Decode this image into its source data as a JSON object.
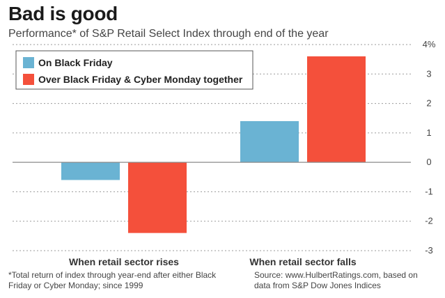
{
  "title": "Bad is good",
  "subtitle": "Performance* of S&P Retail Select Index through end of the year",
  "footnote": "*Total return of index through year-end after either Black Friday or Cyber Monday; since 1999",
  "source": "Source: www.HulbertRatings.com, based on data from S&P Dow Jones Indices",
  "chart_data": {
    "type": "bar",
    "categories": [
      "When retail sector rises",
      "When retail sector falls"
    ],
    "series": [
      {
        "name": "On Black Friday",
        "values": [
          -0.6,
          1.4
        ],
        "color": "#6ab3d3"
      },
      {
        "name": "Over Black Friday & Cyber Monday together",
        "values": [
          -2.4,
          3.6
        ],
        "color": "#f4503b"
      }
    ],
    "ylim": [
      -3,
      4
    ],
    "y_ticks": [
      {
        "value": 4,
        "label": "4%"
      },
      {
        "value": 3,
        "label": "3"
      },
      {
        "value": 2,
        "label": "2"
      },
      {
        "value": 1,
        "label": "1"
      },
      {
        "value": 0,
        "label": "0"
      },
      {
        "value": -1,
        "label": "-1"
      },
      {
        "value": -2,
        "label": "-2"
      },
      {
        "value": -3,
        "label": "-3"
      }
    ],
    "grid": true,
    "legend_position": "top-left"
  }
}
